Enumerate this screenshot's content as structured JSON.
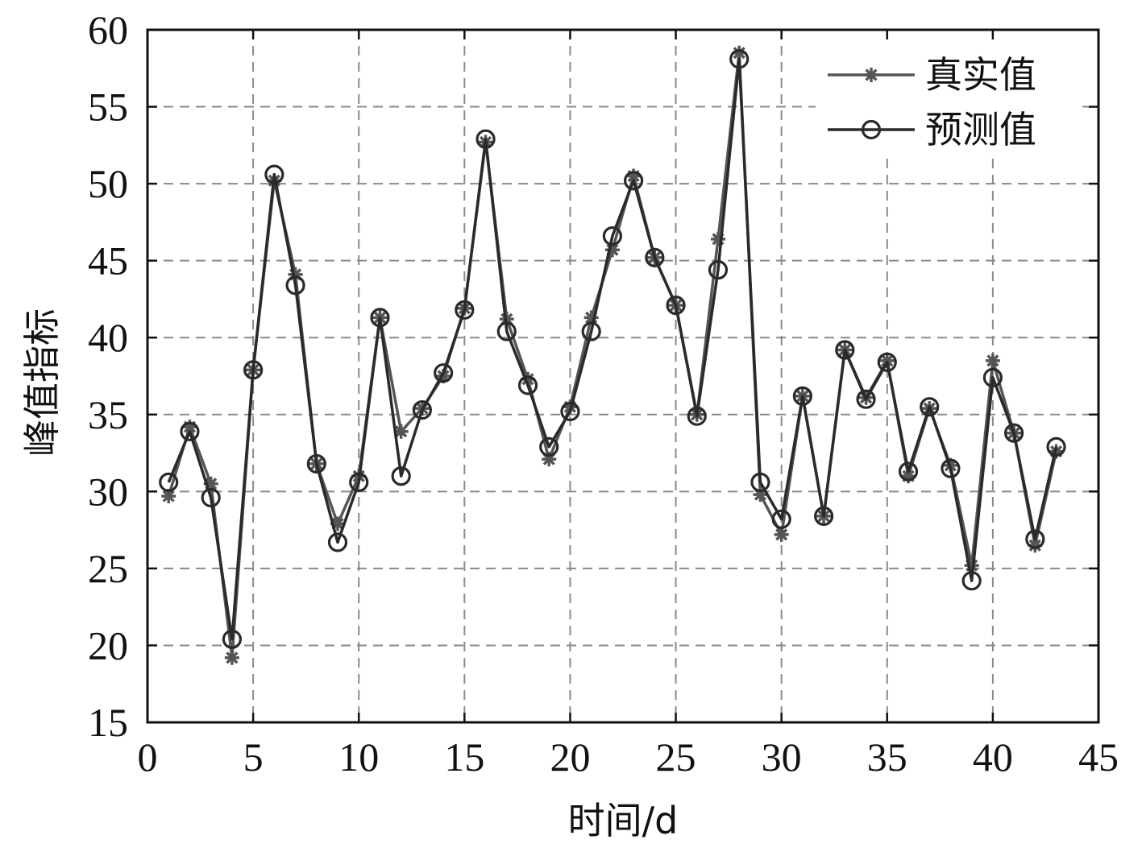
{
  "chart_data": {
    "type": "line",
    "xlabel": "时间/d",
    "ylabel": "峰值指标",
    "xlim": [
      0,
      45
    ],
    "ylim": [
      15,
      60
    ],
    "xticks": [
      "0",
      "5",
      "10",
      "15",
      "20",
      "25",
      "30",
      "35",
      "40",
      "45"
    ],
    "yticks": [
      "15",
      "20",
      "25",
      "30",
      "35",
      "40",
      "45",
      "50",
      "55",
      "60"
    ],
    "grid": true,
    "legend_position": "top-right",
    "x": [
      1,
      2,
      3,
      4,
      5,
      6,
      7,
      8,
      9,
      10,
      11,
      12,
      13,
      14,
      15,
      16,
      17,
      18,
      19,
      20,
      21,
      22,
      23,
      24,
      25,
      26,
      27,
      28,
      29,
      30,
      31,
      32,
      33,
      34,
      35,
      36,
      37,
      38,
      39,
      40,
      41,
      42,
      43
    ],
    "series": [
      {
        "name": "真实值",
        "marker": "asterisk",
        "color": "#555555",
        "values": [
          29.7,
          34.2,
          30.5,
          19.2,
          37.9,
          50.2,
          44.1,
          31.8,
          27.9,
          31.0,
          41.3,
          33.9,
          35.4,
          37.5,
          41.9,
          52.7,
          41.2,
          37.3,
          32.1,
          35.5,
          41.3,
          45.7,
          50.5,
          45.2,
          42.1,
          35.0,
          46.4,
          58.5,
          29.8,
          27.2,
          36.2,
          28.4,
          39.2,
          36.1,
          38.5,
          31.0,
          35.4,
          31.7,
          25.2,
          38.5,
          33.8,
          26.5,
          32.6
        ]
      },
      {
        "name": "预测值",
        "marker": "circle",
        "color": "#2a2a2a",
        "values": [
          30.6,
          33.9,
          29.6,
          20.4,
          37.9,
          50.6,
          43.4,
          31.8,
          26.7,
          30.6,
          41.3,
          31.0,
          35.3,
          37.7,
          41.8,
          52.9,
          40.4,
          36.9,
          32.9,
          35.2,
          40.4,
          46.6,
          50.2,
          45.2,
          42.1,
          34.9,
          44.4,
          58.1,
          30.6,
          28.2,
          36.2,
          28.4,
          39.2,
          36.0,
          38.4,
          31.3,
          35.5,
          31.5,
          24.2,
          37.4,
          33.8,
          26.9,
          32.9
        ]
      }
    ]
  }
}
